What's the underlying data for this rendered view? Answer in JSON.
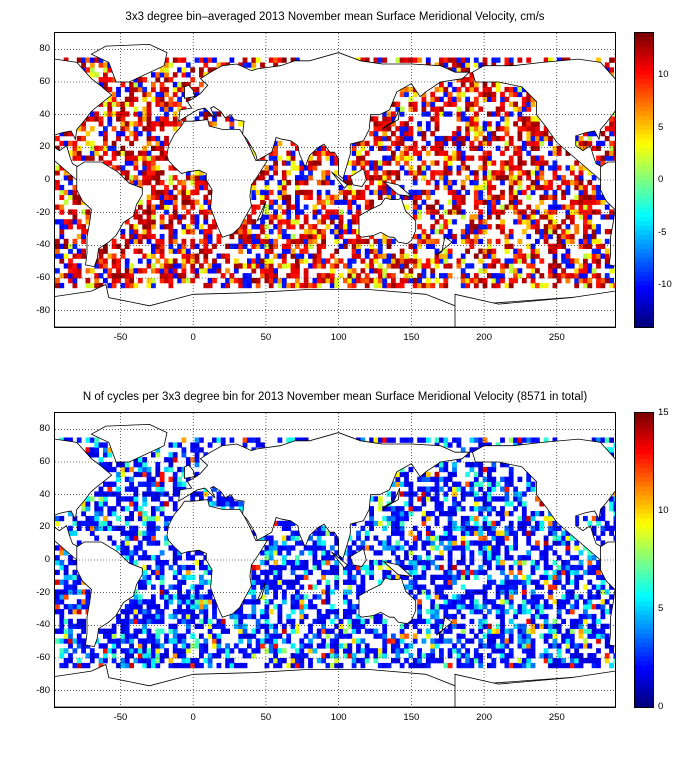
{
  "chart_data": [
    {
      "type": "heatmap",
      "title": "3x3 degree bin–averaged 2013 November mean Surface Meridional Velocity, cm/s",
      "xlim": [
        -95,
        290
      ],
      "ylim": [
        -90,
        90
      ],
      "xticks": [
        -50,
        0,
        50,
        100,
        150,
        200,
        250
      ],
      "yticks": [
        80,
        60,
        40,
        20,
        0,
        -20,
        -40,
        -60,
        -80
      ],
      "colorbar": {
        "min": -14,
        "max": 14,
        "ticks": [
          10,
          5,
          0,
          -5,
          -10
        ],
        "colormap": "jet"
      },
      "grid": true,
      "bin_size_deg": 3
    },
    {
      "type": "heatmap",
      "title": "N of cycles per 3x3 degree bin for 2013 November mean Surface Meridional Velocity (8571 in total)",
      "xlim": [
        -95,
        290
      ],
      "ylim": [
        -90,
        90
      ],
      "xticks": [
        -50,
        0,
        50,
        100,
        150,
        200,
        250
      ],
      "yticks": [
        80,
        60,
        40,
        20,
        0,
        -20,
        -40,
        -60,
        -80
      ],
      "colorbar": {
        "min": 0,
        "max": 15,
        "ticks": [
          15,
          10,
          5,
          0
        ],
        "colormap": "jet"
      },
      "grid": true,
      "bin_size_deg": 3,
      "total_cycles": 8571
    }
  ]
}
